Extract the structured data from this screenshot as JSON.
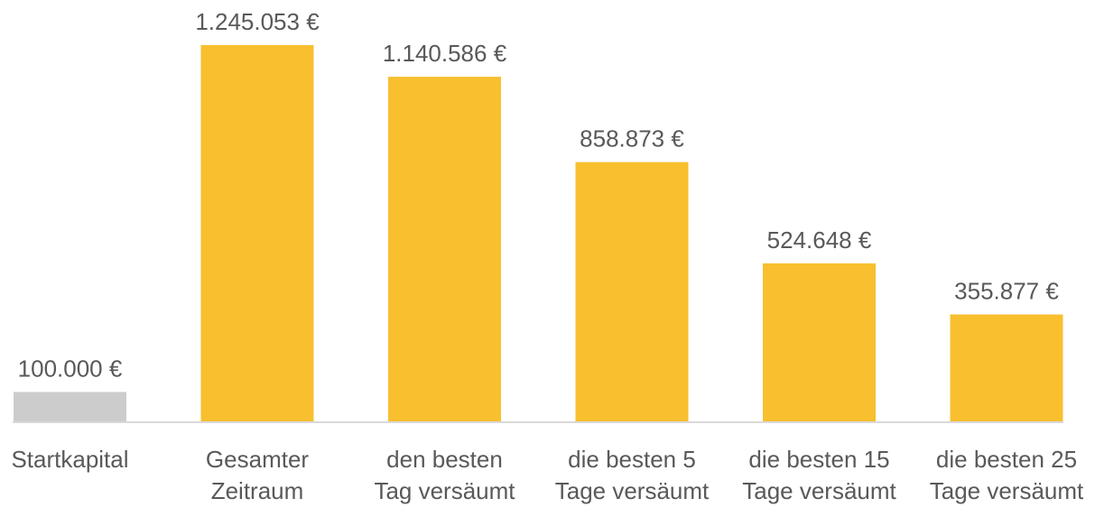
{
  "chart_data": {
    "type": "bar",
    "title": "",
    "xlabel": "",
    "ylabel": "",
    "ylim": [
      0,
      1300000
    ],
    "grid": false,
    "legend": "none",
    "categories": [
      [
        "Startkapital"
      ],
      [
        "Gesamter",
        "Zeitraum"
      ],
      [
        "den besten",
        "Tag versäumt"
      ],
      [
        "die besten 5",
        "Tage versäumt"
      ],
      [
        "die besten 15",
        "Tage versäumt"
      ],
      [
        "die besten 25",
        "Tage versäumt"
      ]
    ],
    "values": [
      100000,
      1245053,
      1140586,
      858873,
      524648,
      355877
    ],
    "value_labels": [
      "100.000 €",
      "1.245.053 €",
      "1.140.586 €",
      "858.873 €",
      "524.648 €",
      "355.877 €"
    ],
    "bar_colors": [
      "#cccccc",
      "#f8bf2f",
      "#f8bf2f",
      "#f8bf2f",
      "#f8bf2f",
      "#f8bf2f"
    ],
    "axis_color": "#d9d9d9",
    "text_color": "#595959"
  }
}
